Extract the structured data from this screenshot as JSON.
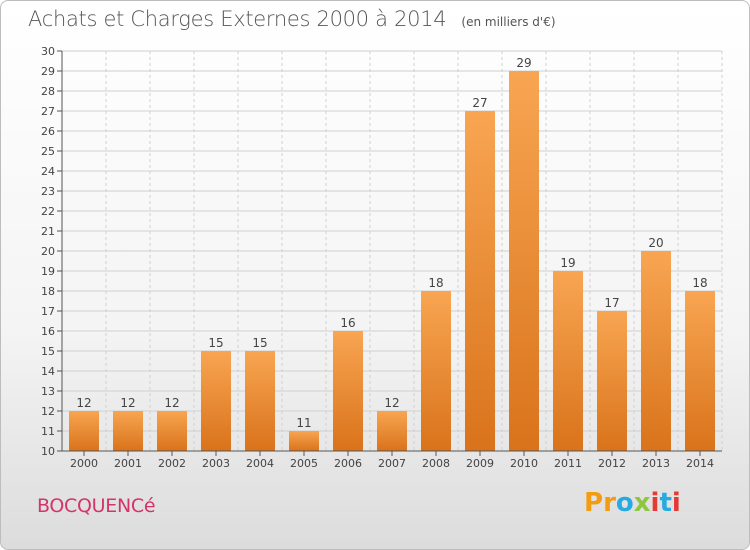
{
  "title": "Achats et Charges Externes 2000 à 2014",
  "subtitle": "(en milliers d'€)",
  "commune": "BOCQUENCé",
  "logo": {
    "text": "Proxiti",
    "colors": [
      "#f39c12",
      "#27a9e1",
      "#8dc63f",
      "#e53935"
    ]
  },
  "chart_data": {
    "type": "bar",
    "title": "Achats et Charges Externes 2000 à 2014",
    "subtitle": "(en milliers d'€)",
    "xlabel": "",
    "ylabel": "",
    "categories": [
      "2000",
      "2001",
      "2002",
      "2003",
      "2004",
      "2005",
      "2006",
      "2007",
      "2008",
      "2009",
      "2010",
      "2011",
      "2012",
      "2013",
      "2014"
    ],
    "values": [
      12,
      12,
      12,
      15,
      15,
      11,
      16,
      12,
      18,
      27,
      29,
      19,
      17,
      20,
      18
    ],
    "ylim": [
      10,
      30
    ],
    "yticks": [
      10,
      11,
      12,
      13,
      14,
      15,
      16,
      17,
      18,
      19,
      20,
      21,
      22,
      23,
      24,
      25,
      26,
      27,
      28,
      29,
      30
    ],
    "grid": true,
    "legend": "none",
    "colors": {
      "bar_top": "#f8a552",
      "bar_bottom": "#d9731b",
      "grid": "#d0d0d0",
      "axis": "#555555"
    }
  }
}
